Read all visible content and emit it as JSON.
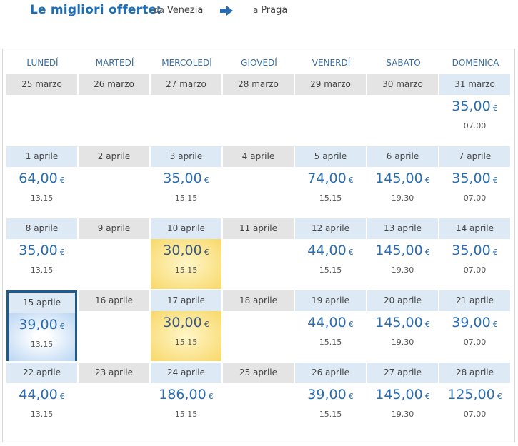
{
  "header": {
    "title": "Le migliori offerte:",
    "from_prefix": "da",
    "from_city": "Venezia",
    "to_prefix": "a",
    "to_city": "Praga"
  },
  "colors": {
    "accent": "#1c6fb5",
    "best_bg": "#f8d86a",
    "selected_border": "#1d5a8e",
    "price_header_bg": "#ddeaf6",
    "empty_header_bg": "#e4e4e4"
  },
  "day_headers": [
    "LUNEDÍ",
    "MARTEDÍ",
    "MERCOLEDÍ",
    "GIOVEDÍ",
    "VENERDÍ",
    "SABATO",
    "DOMENICA"
  ],
  "currency": "€",
  "weeks": [
    [
      {
        "date": "25 marzo",
        "price": "",
        "time": ""
      },
      {
        "date": "26 marzo",
        "price": "",
        "time": ""
      },
      {
        "date": "27 marzo",
        "price": "",
        "time": ""
      },
      {
        "date": "28 marzo",
        "price": "",
        "time": ""
      },
      {
        "date": "29 marzo",
        "price": "",
        "time": ""
      },
      {
        "date": "30 marzo",
        "price": "",
        "time": ""
      },
      {
        "date": "31 marzo",
        "price": "35,00",
        "time": "07.00"
      }
    ],
    [
      {
        "date": "1 aprile",
        "price": "64,00",
        "time": "13.15"
      },
      {
        "date": "2 aprile",
        "price": "",
        "time": ""
      },
      {
        "date": "3 aprile",
        "price": "35,00",
        "time": "15.15"
      },
      {
        "date": "4 aprile",
        "price": "",
        "time": ""
      },
      {
        "date": "5 aprile",
        "price": "74,00",
        "time": "15.15"
      },
      {
        "date": "6 aprile",
        "price": "145,00",
        "time": "19.30"
      },
      {
        "date": "7 aprile",
        "price": "35,00",
        "time": "07.00"
      }
    ],
    [
      {
        "date": "8 aprile",
        "price": "35,00",
        "time": "13.15"
      },
      {
        "date": "9 aprile",
        "price": "",
        "time": ""
      },
      {
        "date": "10 aprile",
        "price": "30,00",
        "time": "15.15",
        "best": true
      },
      {
        "date": "11 aprile",
        "price": "",
        "time": ""
      },
      {
        "date": "12 aprile",
        "price": "44,00",
        "time": "15.15"
      },
      {
        "date": "13 aprile",
        "price": "145,00",
        "time": "19.30"
      },
      {
        "date": "14 aprile",
        "price": "35,00",
        "time": "07.00"
      }
    ],
    [
      {
        "date": "15 aprile",
        "price": "39,00",
        "time": "13.15",
        "selected": true
      },
      {
        "date": "16 aprile",
        "price": "",
        "time": ""
      },
      {
        "date": "17 aprile",
        "price": "30,00",
        "time": "15.15",
        "best": true
      },
      {
        "date": "18 aprile",
        "price": "",
        "time": ""
      },
      {
        "date": "19 aprile",
        "price": "44,00",
        "time": "15.15"
      },
      {
        "date": "20 aprile",
        "price": "145,00",
        "time": "19.30"
      },
      {
        "date": "21 aprile",
        "price": "39,00",
        "time": "07.00"
      }
    ],
    [
      {
        "date": "22 aprile",
        "price": "44,00",
        "time": "13.15"
      },
      {
        "date": "23 aprile",
        "price": "",
        "time": ""
      },
      {
        "date": "24 aprile",
        "price": "186,00",
        "time": "15.15"
      },
      {
        "date": "25 aprile",
        "price": "",
        "time": ""
      },
      {
        "date": "26 aprile",
        "price": "39,00",
        "time": "15.15"
      },
      {
        "date": "27 aprile",
        "price": "145,00",
        "time": "19.30"
      },
      {
        "date": "28 aprile",
        "price": "125,00",
        "time": "07.00"
      }
    ]
  ]
}
